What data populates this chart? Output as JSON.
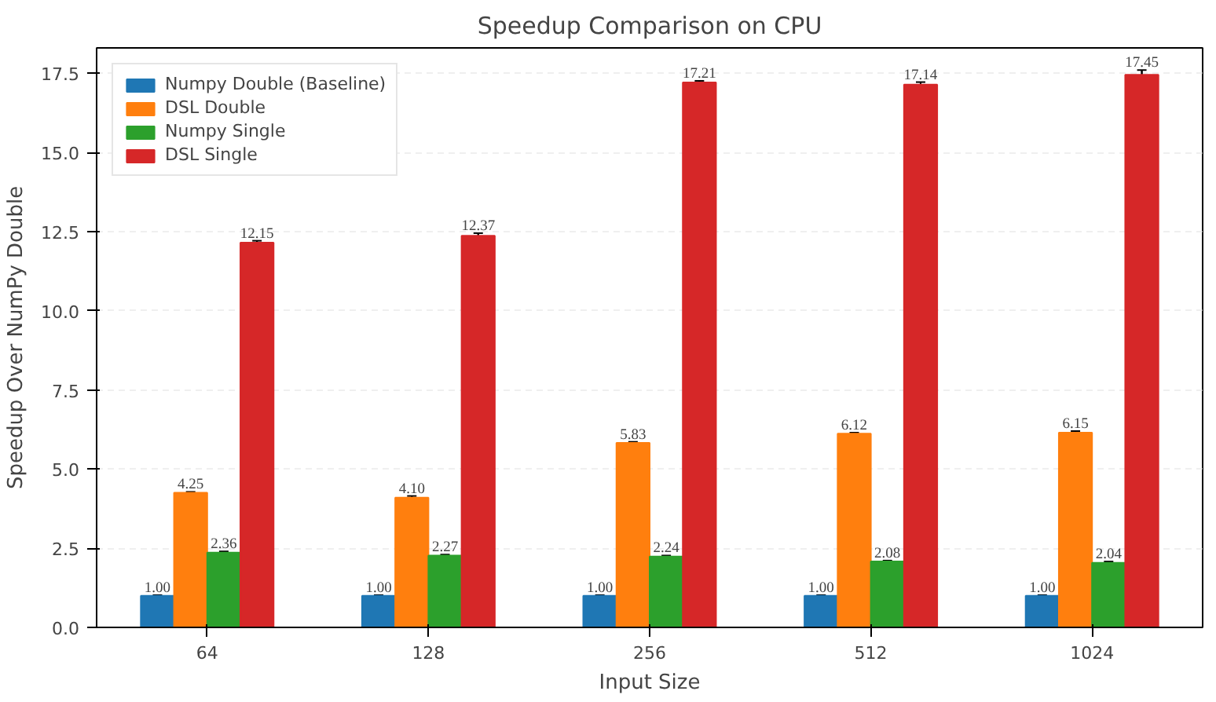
{
  "chart_data": {
    "type": "bar",
    "title": "Speedup Comparison on CPU",
    "xlabel": "Input Size",
    "ylabel": "Speedup Over NumPy Double",
    "categories": [
      "64",
      "128",
      "256",
      "512",
      "1024"
    ],
    "series": [
      {
        "name": "Numpy Double (Baseline)",
        "color": "#1f77b4",
        "values": [
          1.0,
          1.0,
          1.0,
          1.0,
          1.0
        ],
        "value_labels": [
          "1.00",
          "1.00",
          "1.00",
          "1.00",
          "1.00"
        ],
        "errors": [
          0.02,
          0.02,
          0.02,
          0.02,
          0.02
        ]
      },
      {
        "name": "DSL Double",
        "color": "#ff7f0e",
        "values": [
          4.25,
          4.1,
          5.83,
          6.12,
          6.15
        ],
        "value_labels": [
          "4.25",
          "4.10",
          "5.83",
          "6.12",
          "6.15"
        ],
        "errors": [
          0.03,
          0.05,
          0.03,
          0.03,
          0.05
        ]
      },
      {
        "name": "Numpy Single",
        "color": "#2ca02c",
        "values": [
          2.36,
          2.27,
          2.24,
          2.08,
          2.04
        ],
        "value_labels": [
          "2.36",
          "2.27",
          "2.24",
          "2.08",
          "2.04"
        ],
        "errors": [
          0.04,
          0.03,
          0.03,
          0.03,
          0.04
        ]
      },
      {
        "name": "DSL Single",
        "color": "#d62728",
        "values": [
          12.15,
          12.37,
          17.21,
          17.14,
          17.45
        ],
        "value_labels": [
          "12.15",
          "12.37",
          "17.21",
          "17.14",
          "17.45"
        ],
        "errors": [
          0.06,
          0.08,
          0.05,
          0.08,
          0.15
        ]
      }
    ],
    "ylim": [
      0,
      18.3
    ],
    "yticks": [
      {
        "value": 0,
        "label": "0.0"
      },
      {
        "value": 2.5,
        "label": "2.5"
      },
      {
        "value": 5,
        "label": "5.0"
      },
      {
        "value": 7.5,
        "label": "7.5"
      },
      {
        "value": 10,
        "label": "10.0"
      },
      {
        "value": 12.5,
        "label": "12.5"
      },
      {
        "value": 15,
        "label": "15.0"
      },
      {
        "value": 17.5,
        "label": "17.5"
      }
    ],
    "grid": "y",
    "legend": "top left"
  }
}
